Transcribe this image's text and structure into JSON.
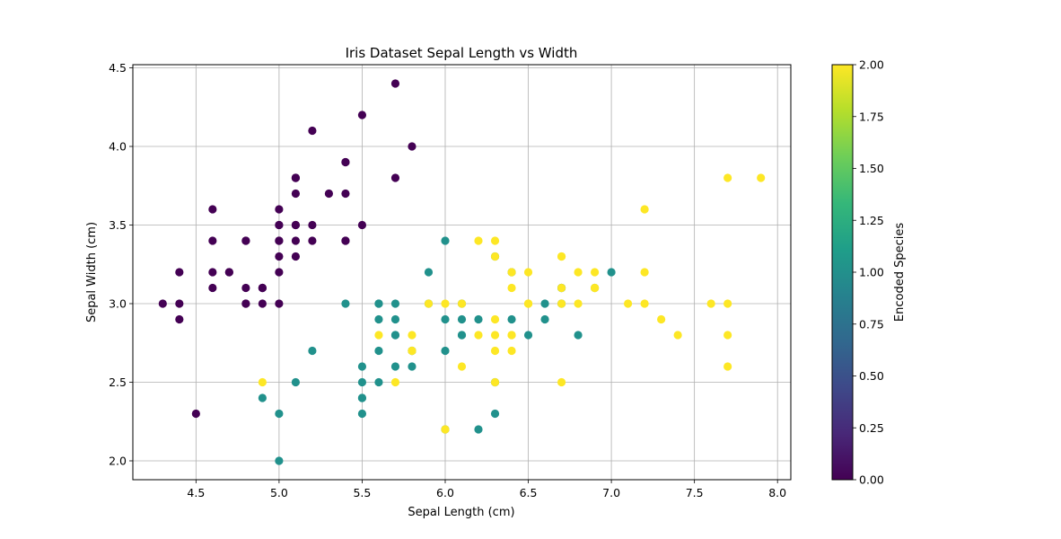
{
  "chart_data": {
    "type": "scatter",
    "title": "Iris Dataset Sepal Length vs Width",
    "xlabel": "Sepal Length (cm)",
    "ylabel": "Sepal Width (cm)",
    "xlim": [
      4.12,
      8.08
    ],
    "ylim": [
      1.88,
      4.52
    ],
    "xticks": [
      "4.5",
      "5.0",
      "5.5",
      "6.0",
      "6.5",
      "7.0",
      "7.5",
      "8.0"
    ],
    "yticks": [
      "2.0",
      "2.5",
      "3.0",
      "3.5",
      "4.0",
      "4.5"
    ],
    "grid": true,
    "colorbar": {
      "label": "Encoded Species",
      "range": [
        0,
        2
      ],
      "ticks": [
        "0.00",
        "0.25",
        "0.50",
        "0.75",
        "1.00",
        "1.25",
        "1.50",
        "1.75",
        "2.00"
      ],
      "colormap": "viridis",
      "stops": [
        "#440154",
        "#482878",
        "#3e4989",
        "#31688e",
        "#26828e",
        "#1f9e89",
        "#35b779",
        "#6ece58",
        "#b5de2b",
        "#fde725"
      ]
    },
    "colors": {
      "0": "#440154",
      "1": "#21918c",
      "2": "#fde725"
    },
    "points": [
      [
        5.1,
        3.5,
        0
      ],
      [
        4.9,
        3.0,
        0
      ],
      [
        4.7,
        3.2,
        0
      ],
      [
        4.6,
        3.1,
        0
      ],
      [
        5.0,
        3.6,
        0
      ],
      [
        5.4,
        3.9,
        0
      ],
      [
        4.6,
        3.4,
        0
      ],
      [
        5.0,
        3.4,
        0
      ],
      [
        4.4,
        2.9,
        0
      ],
      [
        4.9,
        3.1,
        0
      ],
      [
        5.4,
        3.7,
        0
      ],
      [
        4.8,
        3.4,
        0
      ],
      [
        4.8,
        3.0,
        0
      ],
      [
        4.3,
        3.0,
        0
      ],
      [
        5.8,
        4.0,
        0
      ],
      [
        5.7,
        4.4,
        0
      ],
      [
        5.4,
        3.9,
        0
      ],
      [
        5.1,
        3.5,
        0
      ],
      [
        5.7,
        3.8,
        0
      ],
      [
        5.1,
        3.8,
        0
      ],
      [
        5.4,
        3.4,
        0
      ],
      [
        5.1,
        3.7,
        0
      ],
      [
        4.6,
        3.6,
        0
      ],
      [
        5.1,
        3.3,
        0
      ],
      [
        4.8,
        3.4,
        0
      ],
      [
        5.0,
        3.0,
        0
      ],
      [
        5.0,
        3.4,
        0
      ],
      [
        5.2,
        3.5,
        0
      ],
      [
        5.2,
        3.4,
        0
      ],
      [
        4.7,
        3.2,
        0
      ],
      [
        4.8,
        3.1,
        0
      ],
      [
        5.4,
        3.4,
        0
      ],
      [
        5.2,
        4.1,
        0
      ],
      [
        5.5,
        4.2,
        0
      ],
      [
        4.9,
        3.1,
        0
      ],
      [
        5.0,
        3.2,
        0
      ],
      [
        5.5,
        3.5,
        0
      ],
      [
        4.9,
        3.1,
        0
      ],
      [
        4.4,
        3.0,
        0
      ],
      [
        5.1,
        3.4,
        0
      ],
      [
        5.0,
        3.5,
        0
      ],
      [
        4.5,
        2.3,
        0
      ],
      [
        4.4,
        3.2,
        0
      ],
      [
        5.0,
        3.5,
        0
      ],
      [
        5.1,
        3.8,
        0
      ],
      [
        4.8,
        3.0,
        0
      ],
      [
        5.1,
        3.8,
        0
      ],
      [
        4.6,
        3.2,
        0
      ],
      [
        5.3,
        3.7,
        0
      ],
      [
        5.0,
        3.3,
        0
      ],
      [
        7.0,
        3.2,
        1
      ],
      [
        6.4,
        3.2,
        1
      ],
      [
        6.9,
        3.1,
        1
      ],
      [
        5.5,
        2.3,
        1
      ],
      [
        6.5,
        2.8,
        1
      ],
      [
        5.7,
        2.8,
        1
      ],
      [
        6.3,
        3.3,
        1
      ],
      [
        4.9,
        2.4,
        1
      ],
      [
        6.6,
        2.9,
        1
      ],
      [
        5.2,
        2.7,
        1
      ],
      [
        5.0,
        2.0,
        1
      ],
      [
        5.9,
        3.0,
        1
      ],
      [
        6.0,
        2.2,
        1
      ],
      [
        6.1,
        2.9,
        1
      ],
      [
        5.6,
        2.9,
        1
      ],
      [
        6.7,
        3.1,
        1
      ],
      [
        5.6,
        3.0,
        1
      ],
      [
        5.8,
        2.7,
        1
      ],
      [
        6.2,
        2.2,
        1
      ],
      [
        5.6,
        2.5,
        1
      ],
      [
        5.9,
        3.2,
        1
      ],
      [
        6.1,
        2.8,
        1
      ],
      [
        6.3,
        2.5,
        1
      ],
      [
        6.1,
        2.8,
        1
      ],
      [
        6.4,
        2.9,
        1
      ],
      [
        6.6,
        3.0,
        1
      ],
      [
        6.8,
        2.8,
        1
      ],
      [
        6.7,
        3.0,
        1
      ],
      [
        6.0,
        2.9,
        1
      ],
      [
        5.7,
        2.6,
        1
      ],
      [
        5.5,
        2.4,
        1
      ],
      [
        5.5,
        2.4,
        1
      ],
      [
        5.8,
        2.7,
        1
      ],
      [
        6.0,
        2.7,
        1
      ],
      [
        5.4,
        3.0,
        1
      ],
      [
        6.0,
        3.4,
        1
      ],
      [
        6.7,
        3.1,
        1
      ],
      [
        6.3,
        2.3,
        1
      ],
      [
        5.6,
        3.0,
        1
      ],
      [
        5.5,
        2.5,
        1
      ],
      [
        5.5,
        2.6,
        1
      ],
      [
        6.1,
        3.0,
        1
      ],
      [
        5.8,
        2.6,
        1
      ],
      [
        5.0,
        2.3,
        1
      ],
      [
        5.6,
        2.7,
        1
      ],
      [
        5.7,
        3.0,
        1
      ],
      [
        5.7,
        2.9,
        1
      ],
      [
        6.2,
        2.9,
        1
      ],
      [
        5.1,
        2.5,
        1
      ],
      [
        5.7,
        2.8,
        1
      ],
      [
        6.3,
        3.3,
        2
      ],
      [
        5.8,
        2.7,
        2
      ],
      [
        7.1,
        3.0,
        2
      ],
      [
        6.3,
        2.9,
        2
      ],
      [
        6.5,
        3.0,
        2
      ],
      [
        7.6,
        3.0,
        2
      ],
      [
        4.9,
        2.5,
        2
      ],
      [
        7.3,
        2.9,
        2
      ],
      [
        6.7,
        2.5,
        2
      ],
      [
        7.2,
        3.6,
        2
      ],
      [
        6.5,
        3.2,
        2
      ],
      [
        6.4,
        2.7,
        2
      ],
      [
        6.8,
        3.0,
        2
      ],
      [
        5.7,
        2.5,
        2
      ],
      [
        5.8,
        2.8,
        2
      ],
      [
        6.4,
        3.2,
        2
      ],
      [
        6.5,
        3.0,
        2
      ],
      [
        7.7,
        3.8,
        2
      ],
      [
        7.7,
        2.6,
        2
      ],
      [
        6.0,
        2.2,
        2
      ],
      [
        6.9,
        3.2,
        2
      ],
      [
        5.6,
        2.8,
        2
      ],
      [
        7.7,
        2.8,
        2
      ],
      [
        6.3,
        2.7,
        2
      ],
      [
        6.7,
        3.3,
        2
      ],
      [
        7.2,
        3.2,
        2
      ],
      [
        6.2,
        2.8,
        2
      ],
      [
        6.1,
        3.0,
        2
      ],
      [
        6.4,
        2.8,
        2
      ],
      [
        7.2,
        3.0,
        2
      ],
      [
        7.4,
        2.8,
        2
      ],
      [
        7.9,
        3.8,
        2
      ],
      [
        6.4,
        2.8,
        2
      ],
      [
        6.3,
        2.8,
        2
      ],
      [
        6.1,
        2.6,
        2
      ],
      [
        7.7,
        3.0,
        2
      ],
      [
        6.3,
        3.4,
        2
      ],
      [
        6.4,
        3.1,
        2
      ],
      [
        6.0,
        3.0,
        2
      ],
      [
        6.9,
        3.1,
        2
      ],
      [
        6.7,
        3.1,
        2
      ],
      [
        6.9,
        3.1,
        2
      ],
      [
        5.8,
        2.7,
        2
      ],
      [
        6.8,
        3.2,
        2
      ],
      [
        6.7,
        3.3,
        2
      ],
      [
        6.7,
        3.0,
        2
      ],
      [
        6.3,
        2.5,
        2
      ],
      [
        6.5,
        3.0,
        2
      ],
      [
        6.2,
        3.4,
        2
      ],
      [
        5.9,
        3.0,
        2
      ]
    ]
  }
}
